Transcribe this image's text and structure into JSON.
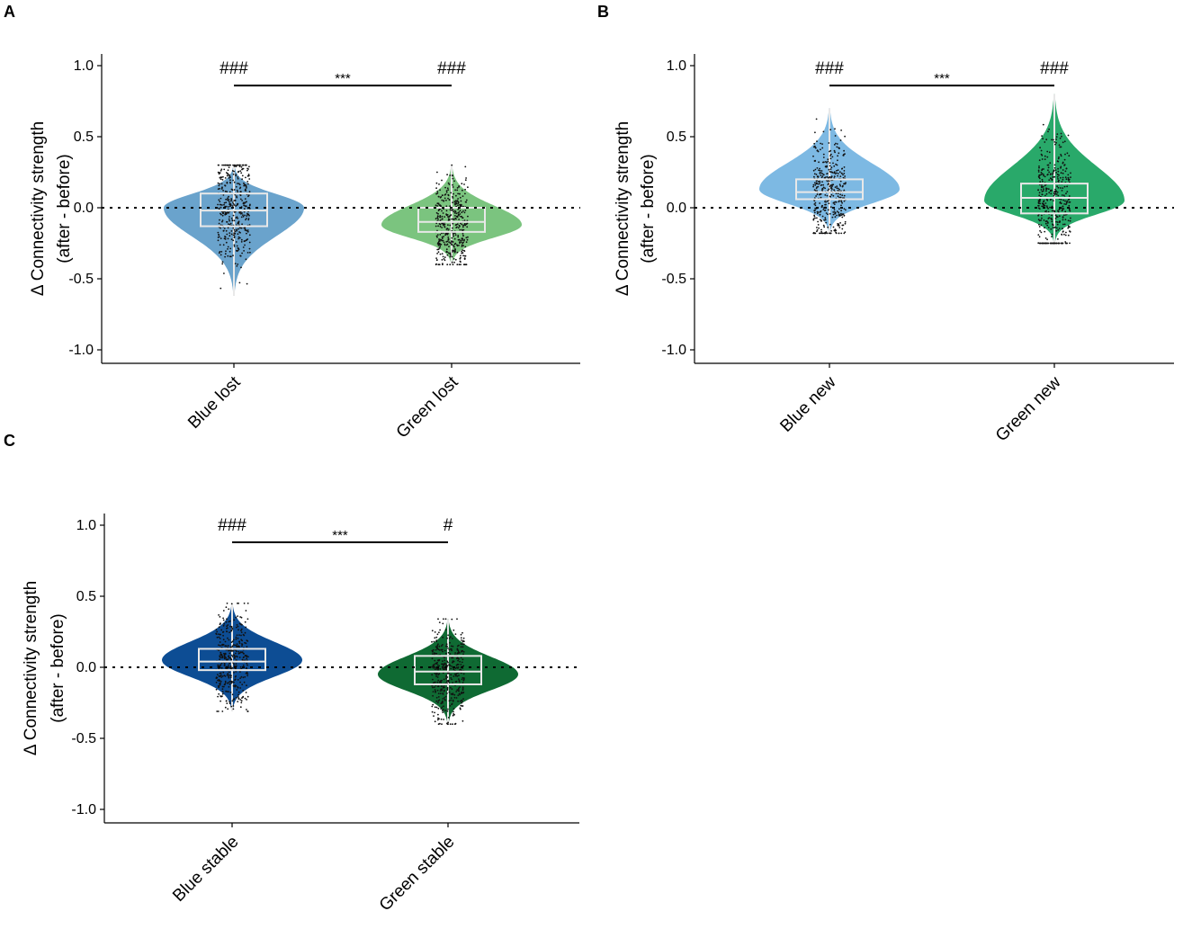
{
  "chart_data": [
    {
      "panel": "A",
      "type": "violin",
      "ylabel_line1": "Δ Connectivity strength",
      "ylabel_line2": "(after - before)",
      "ylim": [
        -1.1,
        1.1
      ],
      "yticks": [
        1.0,
        0.5,
        0.0,
        -0.5,
        -1.0
      ],
      "ytick_labels": [
        "1.0",
        "0.5",
        "0.0",
        "-0.5",
        "-1.0"
      ],
      "reference_line": 0.0,
      "groups": [
        {
          "name": "Blue lost",
          "color": "#6aa3cc",
          "median": -0.02,
          "q1": -0.13,
          "q3": 0.1,
          "min": -0.62,
          "max": 0.3,
          "mode": 0.0,
          "hash": "###"
        },
        {
          "name": "Green lost",
          "color": "#7bc47f",
          "median": -0.1,
          "q1": -0.17,
          "q3": 0.0,
          "min": -0.4,
          "max": 0.3,
          "mode": -0.12,
          "hash": "###"
        }
      ],
      "comparison": {
        "label": "***",
        "y": 0.86
      }
    },
    {
      "panel": "B",
      "type": "violin",
      "ylabel_line1": "Δ Connectivity strength",
      "ylabel_line2": "(after - before)",
      "ylim": [
        -1.1,
        1.1
      ],
      "yticks": [
        1.0,
        0.5,
        0.0,
        -0.5,
        -1.0
      ],
      "ytick_labels": [
        "1.0",
        "0.5",
        "0.0",
        "-0.5",
        "-1.0"
      ],
      "reference_line": 0.0,
      "groups": [
        {
          "name": "Blue new",
          "color": "#7db9e3",
          "median": 0.11,
          "q1": 0.06,
          "q3": 0.2,
          "min": -0.18,
          "max": 0.7,
          "mode": 0.13,
          "hash": "###"
        },
        {
          "name": "Green new",
          "color": "#29a96a",
          "median": 0.07,
          "q1": -0.04,
          "q3": 0.17,
          "min": -0.25,
          "max": 0.8,
          "mode": 0.05,
          "hash": "###"
        }
      ],
      "comparison": {
        "label": "***",
        "y": 0.86
      }
    },
    {
      "panel": "C",
      "type": "violin",
      "ylabel_line1": "Δ Connectivity strength",
      "ylabel_line2": "(after - before)",
      "ylim": [
        -1.1,
        1.1
      ],
      "yticks": [
        1.0,
        0.5,
        0.0,
        -0.5,
        -1.0
      ],
      "ytick_labels": [
        "1.0",
        "0.5",
        "0.0",
        "-0.5",
        "-1.0"
      ],
      "reference_line": 0.0,
      "groups": [
        {
          "name": "Blue stable",
          "color": "#0d4d94",
          "median": 0.04,
          "q1": -0.02,
          "q3": 0.13,
          "min": -0.31,
          "max": 0.45,
          "mode": 0.05,
          "hash": "###"
        },
        {
          "name": "Green stable",
          "color": "#0f6a33",
          "median": -0.03,
          "q1": -0.12,
          "q3": 0.08,
          "min": -0.4,
          "max": 0.34,
          "mode": -0.05,
          "hash": "#"
        }
      ],
      "comparison": {
        "label": "***",
        "y": 0.88
      }
    }
  ]
}
